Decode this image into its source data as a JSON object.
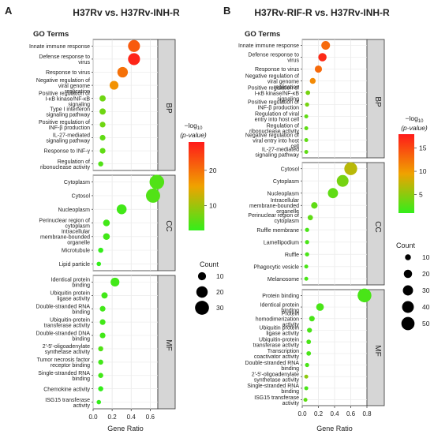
{
  "panels": [
    {
      "letter": "A",
      "title": "H37Rv vs. H37Rv-INH-R",
      "terms_header": "GO Terms",
      "legend_count_title": "Count"
    },
    {
      "letter": "B",
      "title": "H37Rv-RIF-R vs. H37Rv-INH-R",
      "terms_header": "GO Terms",
      "legend_count_title": "Count"
    }
  ],
  "chart_data": [
    {
      "type": "scatter",
      "panel": "A",
      "title": "H37Rv vs. H37Rv-INH-R",
      "xlabel": "Gene Ratio",
      "xlim": [
        0,
        0.68
      ],
      "xticks": [
        "0.0",
        "0.2",
        "0.4",
        "0.6"
      ],
      "color_legend": {
        "title": "−log₁₀ (p-value)",
        "min": 3,
        "max": 28,
        "ticks": [
          "10",
          "20"
        ],
        "low_color": "#33ee1a",
        "mid_color": "#f0a200",
        "high_color": "#ff1a1a"
      },
      "size_legend": {
        "title": "Count",
        "values": [
          "10",
          "20",
          "30"
        ]
      },
      "groups": [
        {
          "name": "BP",
          "terms": [
            {
              "term": "Innate immune response",
              "ratio": 0.43,
              "count": 22,
              "logp": 22
            },
            {
              "term": "Defense response to virus",
              "ratio": 0.43,
              "count": 22,
              "logp": 27
            },
            {
              "term": "Response to virus",
              "ratio": 0.31,
              "count": 17,
              "logp": 20
            },
            {
              "term": "Negative regulation of viral genome replication",
              "ratio": 0.22,
              "count": 12,
              "logp": 17
            },
            {
              "term": "Positive regulation of I-κB kinase/NF-κB signaling",
              "ratio": 0.1,
              "count": 6,
              "logp": 7
            },
            {
              "term": "Type I interferon signaling pathway",
              "ratio": 0.1,
              "count": 6,
              "logp": 7
            },
            {
              "term": "Positive regulation of INF-β production",
              "ratio": 0.1,
              "count": 5,
              "logp": 7
            },
            {
              "term": "IL-27-mediated signaling pathway",
              "ratio": 0.1,
              "count": 5,
              "logp": 6
            },
            {
              "term": "Response to INF-γ",
              "ratio": 0.1,
              "count": 5,
              "logp": 6
            },
            {
              "term": "Regulation of ribonuclease activity",
              "ratio": 0.08,
              "count": 4,
              "logp": 5
            }
          ]
        },
        {
          "name": "CC",
          "terms": [
            {
              "term": "Cytoplasm",
              "ratio": 0.67,
              "count": 33,
              "logp": 5
            },
            {
              "term": "Cytosol",
              "ratio": 0.63,
              "count": 31,
              "logp": 5
            },
            {
              "term": "Nucleoplasm",
              "ratio": 0.3,
              "count": 15,
              "logp": 4
            },
            {
              "term": "Perinuclear region of cytoplasm",
              "ratio": 0.14,
              "count": 7,
              "logp": 4
            },
            {
              "term": "Intracellular membrane-bounded organelle",
              "ratio": 0.14,
              "count": 7,
              "logp": 4
            },
            {
              "term": "Microtubule",
              "ratio": 0.08,
              "count": 4,
              "logp": 3
            },
            {
              "term": "Lipid particle",
              "ratio": 0.06,
              "count": 3,
              "logp": 3
            }
          ]
        },
        {
          "name": "MF",
          "terms": [
            {
              "term": "Identical protein binding",
              "ratio": 0.23,
              "count": 12,
              "logp": 4
            },
            {
              "term": "Ubiquitin protein ligase activity",
              "ratio": 0.12,
              "count": 6,
              "logp": 4
            },
            {
              "term": "Double-stranded RNA binding",
              "ratio": 0.1,
              "count": 5,
              "logp": 4
            },
            {
              "term": "Ubiquitin-protein transferase activity",
              "ratio": 0.1,
              "count": 5,
              "logp": 4
            },
            {
              "term": "Double-stranded DNA binding",
              "ratio": 0.1,
              "count": 5,
              "logp": 4
            },
            {
              "term": "2'-5'-oligoadenylate synthetase activity",
              "ratio": 0.08,
              "count": 4,
              "logp": 5
            },
            {
              "term": "Tumor necrosis factor receptor binding",
              "ratio": 0.08,
              "count": 4,
              "logp": 4
            },
            {
              "term": "Single-stranded RNA binding",
              "ratio": 0.08,
              "count": 4,
              "logp": 4
            },
            {
              "term": "Chemokine activity",
              "ratio": 0.08,
              "count": 4,
              "logp": 3
            },
            {
              "term": "ISG15 transferase activity",
              "ratio": 0.06,
              "count": 3,
              "logp": 3
            }
          ]
        }
      ]
    },
    {
      "type": "scatter",
      "panel": "B",
      "title": "H37Rv-RIF-R vs. H37Rv-INH-R",
      "xlabel": "Gene Ratio",
      "xlim": [
        0,
        0.8
      ],
      "xticks": [
        "0.0",
        "0.2",
        "0.4",
        "0.6",
        "0.8"
      ],
      "color_legend": {
        "title": "−log₁₀ (p-value)",
        "min": 1,
        "max": 18,
        "ticks": [
          "5",
          "10",
          "15"
        ],
        "low_color": "#33ee1a",
        "mid_color": "#f0a200",
        "high_color": "#ff1a1a"
      },
      "size_legend": {
        "title": "Count",
        "values": [
          "10",
          "20",
          "30",
          "40",
          "50"
        ]
      },
      "groups": [
        {
          "name": "BP",
          "terms": [
            {
              "term": "Innate immune response",
              "ratio": 0.29,
              "count": 22,
              "logp": 13
            },
            {
              "term": "Defense response to virus",
              "ratio": 0.25,
              "count": 20,
              "logp": 17
            },
            {
              "term": "Response to virus",
              "ratio": 0.2,
              "count": 15,
              "logp": 13
            },
            {
              "term": "Negative regulation of viral genome replication",
              "ratio": 0.13,
              "count": 10,
              "logp": 11
            },
            {
              "term": "Positive regulation of I-κB kinase/NF-κB signaling",
              "ratio": 0.07,
              "count": 6,
              "logp": 4
            },
            {
              "term": "Positive regulation of INF-β production",
              "ratio": 0.06,
              "count": 5,
              "logp": 4
            },
            {
              "term": "Regulation of viral entry into host cell",
              "ratio": 0.05,
              "count": 4,
              "logp": 3
            },
            {
              "term": "Regulation of ribonuclease activity",
              "ratio": 0.05,
              "count": 4,
              "logp": 3
            },
            {
              "term": "Negative regulation of viral entry into host cell",
              "ratio": 0.05,
              "count": 4,
              "logp": 3
            },
            {
              "term": "IL-27-mediated signaling pathway",
              "ratio": 0.05,
              "count": 4,
              "logp": 3
            }
          ]
        },
        {
          "name": "CC",
          "terms": [
            {
              "term": "Cytosol",
              "ratio": 0.6,
              "count": 48,
              "logp": 7
            },
            {
              "term": "Cytoplasm",
              "ratio": 0.5,
              "count": 40,
              "logp": 4
            },
            {
              "term": "Nucleoplasm",
              "ratio": 0.38,
              "count": 30,
              "logp": 3
            },
            {
              "term": "Intracellular membrane-bounded organelle",
              "ratio": 0.15,
              "count": 12,
              "logp": 3
            },
            {
              "term": "Perinuclear region of cytoplasm",
              "ratio": 0.1,
              "count": 8,
              "logp": 3
            },
            {
              "term": "Ruffle membrane",
              "ratio": 0.06,
              "count": 5,
              "logp": 2
            },
            {
              "term": "Lamellipodium",
              "ratio": 0.06,
              "count": 5,
              "logp": 2
            },
            {
              "term": "Ruffle",
              "ratio": 0.06,
              "count": 5,
              "logp": 2
            },
            {
              "term": "Phagocytic vesicle",
              "ratio": 0.05,
              "count": 4,
              "logp": 2
            },
            {
              "term": "Melanosome",
              "ratio": 0.05,
              "count": 4,
              "logp": 2
            }
          ]
        },
        {
          "name": "MF",
          "terms": [
            {
              "term": "Protein binding",
              "ratio": 0.77,
              "count": 55,
              "logp": 2
            },
            {
              "term": "Identical protein binding",
              "ratio": 0.22,
              "count": 17,
              "logp": 2
            },
            {
              "term": "Protein homodimerization activity",
              "ratio": 0.12,
              "count": 9,
              "logp": 2
            },
            {
              "term": "Ubiquitin protein ligase activity",
              "ratio": 0.09,
              "count": 7,
              "logp": 2
            },
            {
              "term": "Ubiquitin-protein transferase activity",
              "ratio": 0.08,
              "count": 6,
              "logp": 2
            },
            {
              "term": "Transcription coactivator activity",
              "ratio": 0.08,
              "count": 6,
              "logp": 2
            },
            {
              "term": "Double-stranded RNA binding",
              "ratio": 0.06,
              "count": 5,
              "logp": 2
            },
            {
              "term": "2'-5'-oligoadenylate synthetase activity",
              "ratio": 0.05,
              "count": 4,
              "logp": 5
            },
            {
              "term": "Single-stranded RNA binding",
              "ratio": 0.05,
              "count": 4,
              "logp": 2
            },
            {
              "term": "ISG15 transferase activity",
              "ratio": 0.04,
              "count": 3,
              "logp": 3
            }
          ]
        }
      ]
    }
  ]
}
